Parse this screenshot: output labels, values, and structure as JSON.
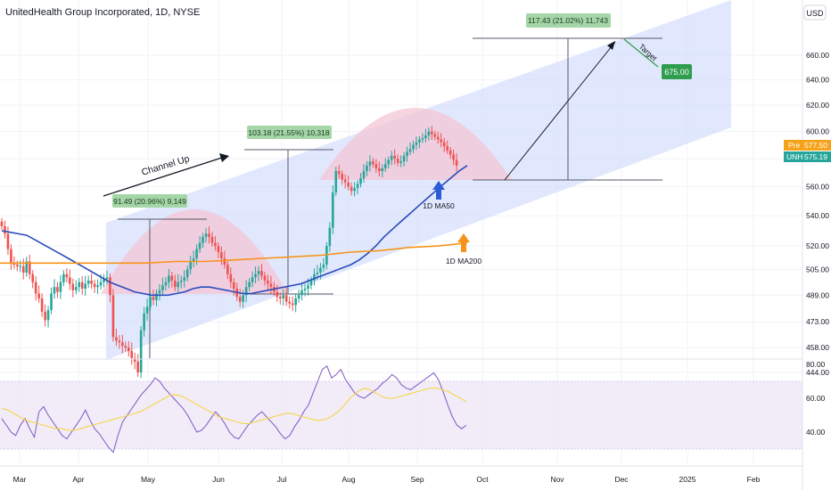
{
  "header": {
    "title": "UnitedHealth Group Incorporated, 1D, NYSE"
  },
  "price_axis": {
    "currency": "USD"
  },
  "price_labels": {
    "pre": {
      "tag": "Pre",
      "value": "577.50",
      "color": "#f7a21b"
    },
    "last": {
      "tag": "UNH",
      "value": "575.19",
      "color": "#26a69a"
    }
  },
  "annotations": {
    "channel_label": "Channel Up",
    "measure_1": "91.49 (20.96%) 9,149",
    "measure_2": "103.18 (21.55%) 10,318",
    "measure_3": "117.43 (21.02%) 11,743",
    "target_label": "Target",
    "target_value": "675.00",
    "ma50_label": "1D MA50",
    "ma200_label": "1D MA200"
  },
  "colors": {
    "up": "#26a69a",
    "down": "#ef5350",
    "ma50": "#2a4bbd",
    "ma200": "#f7931a",
    "channel": "#c9d6fb",
    "arc": "#f3c6d6",
    "rsi": "#7e57c2",
    "rsi_ma": "#f5d547",
    "measure_box": "#a5d6a7",
    "target_box": "#2e9d4d"
  },
  "chart_data": [
    {
      "type": "candlestick",
      "title": "UnitedHealth Group Incorporated, 1D, NYSE",
      "x_tick_labels": [
        "Mar",
        "Apr",
        "May",
        "Jun",
        "Jul",
        "Aug",
        "Sep",
        "Oct",
        "Nov",
        "Dec",
        "2025",
        "Feb"
      ],
      "y_tick_labels": [
        444,
        458,
        473,
        489,
        505,
        520,
        540,
        560,
        580,
        600,
        620,
        640,
        660
      ],
      "scale": "log",
      "ylim": [
        430,
        700
      ],
      "grid": true,
      "series": [
        {
          "name": "UNH",
          "close": [
            533,
            528,
            518,
            509,
            508,
            507,
            507,
            503,
            510,
            502,
            497,
            490,
            487,
            479,
            474,
            480,
            490,
            494,
            491,
            497,
            502,
            500,
            496,
            492,
            494,
            497,
            493,
            496,
            498,
            496,
            494,
            495,
            497,
            499,
            500,
            489,
            464,
            462,
            461,
            459,
            458,
            456,
            452,
            450,
            444,
            468,
            478,
            482,
            488,
            486,
            490,
            492,
            495,
            497,
            501,
            498,
            494,
            497,
            498,
            500,
            505,
            510,
            512,
            518,
            522,
            526,
            528,
            526,
            522,
            520,
            516,
            512,
            508,
            502,
            497,
            493,
            488,
            485,
            489,
            494,
            497,
            500,
            502,
            504,
            501,
            498,
            496,
            494,
            491,
            488,
            487,
            489,
            485,
            484,
            483,
            487,
            489,
            492,
            493,
            495,
            498,
            502,
            503,
            506,
            508,
            520,
            532,
            556,
            571,
            569,
            565,
            563,
            560,
            557,
            559,
            562,
            566,
            571,
            575,
            578,
            576,
            573,
            571,
            573,
            576,
            579,
            582,
            580,
            577,
            578,
            582,
            585,
            587,
            590,
            592,
            594,
            595,
            597,
            600,
            598,
            596,
            594,
            592,
            589,
            586,
            583,
            579,
            575
          ],
          "open_prev_close": true
        },
        {
          "name": "1D MA50",
          "values": [
            530,
            529,
            528,
            527,
            524,
            521,
            518,
            515,
            512,
            509,
            506,
            503,
            500,
            497,
            495,
            493,
            491,
            490,
            489,
            489,
            489,
            490,
            491,
            493,
            494,
            494,
            493,
            492,
            491,
            490,
            490,
            491,
            492,
            493,
            494,
            495,
            496,
            498,
            500,
            502,
            504,
            506,
            508,
            511,
            515,
            520,
            526,
            531,
            536,
            541,
            546,
            551,
            556,
            561,
            566,
            571,
            575
          ]
        },
        {
          "name": "1D MA200",
          "values": [
            509,
            509,
            509,
            509,
            509,
            509,
            510,
            510,
            511,
            512,
            513,
            514,
            516,
            517,
            519,
            520,
            522
          ]
        }
      ],
      "annotations": {
        "channel": "Channel Up",
        "rise_1": "91.49 (20.96%) 9,149",
        "rise_2": "103.18 (21.55%) 10,318",
        "projected_rise": "117.43 (21.02%) 11,743",
        "target": 675.0,
        "pre_market": 577.5,
        "last": 575.19
      }
    },
    {
      "type": "line",
      "title": "",
      "y_tick_labels": [
        80,
        60,
        40
      ],
      "ylim": [
        25,
        85
      ],
      "bands": {
        "upper": 70,
        "lower": 30
      },
      "series": [
        {
          "name": "",
          "values": [
            48,
            44,
            40,
            38,
            44,
            48,
            42,
            37,
            52,
            55,
            50,
            46,
            42,
            38,
            36,
            40,
            44,
            48,
            53,
            47,
            42,
            39,
            35,
            31,
            28,
            38,
            46,
            50,
            54,
            58,
            62,
            65,
            68,
            72,
            70,
            66,
            63,
            60,
            57,
            54,
            50,
            45,
            40,
            41,
            44,
            48,
            52,
            49,
            45,
            40,
            37,
            36,
            40,
            44,
            47,
            50,
            52,
            49,
            46,
            43,
            39,
            36,
            38,
            43,
            47,
            52,
            56,
            63,
            70,
            77,
            79,
            72,
            74,
            77,
            71,
            67,
            63,
            61,
            60,
            62,
            64,
            66,
            69,
            71,
            74,
            72,
            68,
            66,
            65,
            67,
            69,
            71,
            73,
            75,
            71,
            64,
            56,
            49,
            44,
            42,
            44
          ]
        },
        {
          "name": "",
          "values": [
            54,
            53,
            51,
            49,
            47,
            46,
            45,
            44,
            43,
            42,
            42,
            41,
            41,
            42,
            43,
            44,
            45,
            46,
            47,
            48,
            49,
            50,
            51,
            52,
            54,
            56,
            58,
            60,
            62,
            62,
            61,
            59,
            57,
            55,
            53,
            51,
            49,
            48,
            47,
            46,
            45,
            45,
            46,
            47,
            48,
            49,
            50,
            51,
            51,
            50,
            49,
            48,
            47,
            47,
            48,
            50,
            53,
            57,
            61,
            64,
            66,
            65,
            63,
            61,
            60,
            60,
            61,
            62,
            63,
            64,
            65,
            66,
            66,
            65,
            64,
            62,
            60,
            58
          ]
        }
      ]
    }
  ]
}
